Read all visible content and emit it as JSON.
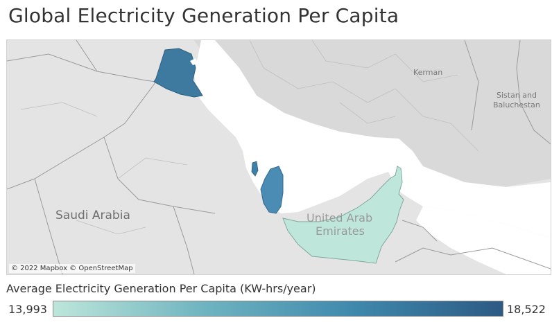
{
  "title": "Global Electricity Generation Per Capita",
  "map": {
    "attribution": "© 2022 Mapbox © OpenStreetMap",
    "place_labels": {
      "saudi_arabia": "Saudi Arabia",
      "uae_line1": "United Arab",
      "uae_line2": "Emirates",
      "kerman": "Kerman",
      "sistan_line1": "Sistan and",
      "sistan_line2": "Baluchestan"
    },
    "regions": [
      {
        "name": "Kuwait",
        "value_level": 1.0
      },
      {
        "name": "Bahrain",
        "value_level": 0.78
      },
      {
        "name": "Qatar",
        "value_level": 0.6
      },
      {
        "name": "United Arab Emirates",
        "value_level": 0.0
      }
    ]
  },
  "legend": {
    "title": "Average Electricity Generation Per Capita (KW-hrs/year)",
    "min_label": "13,993",
    "max_label": "18,522",
    "colors": [
      "#bde6da",
      "#6fb4c0",
      "#3f89ad",
      "#2c5a84"
    ]
  }
}
